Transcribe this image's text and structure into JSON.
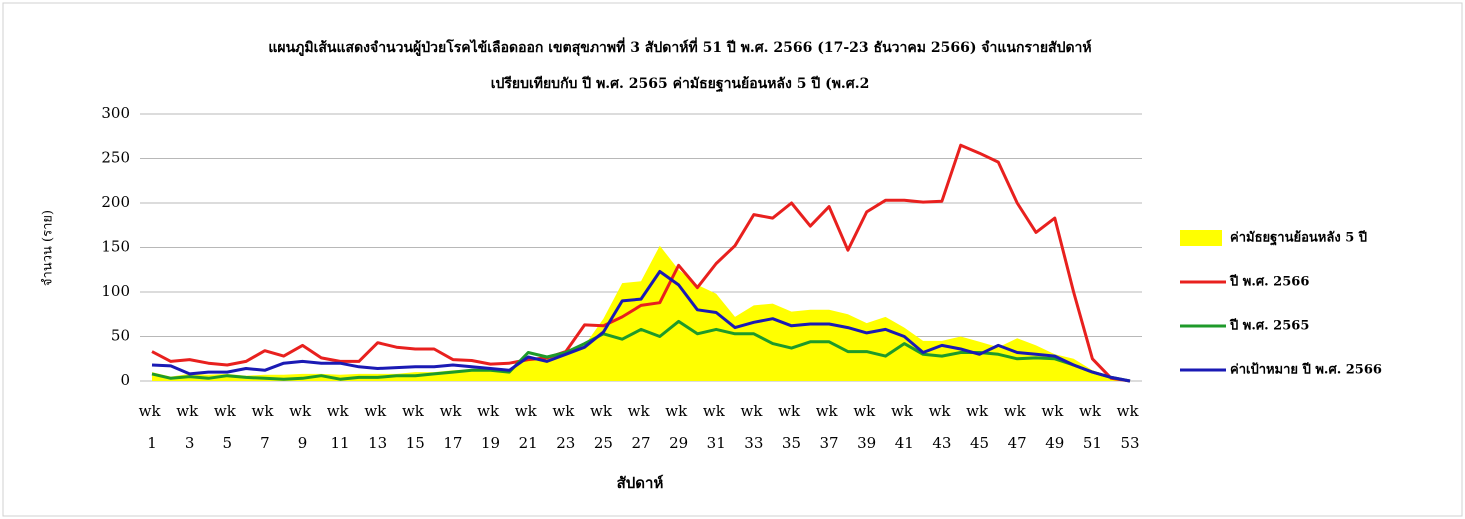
{
  "chart_data": {
    "type": "line",
    "title": "แผนภูมิเส้นแสดงจำนวนผู้ป่วยโรคไข้เลือดออก เขตสุขภาพที่ 3 สัปดาห์ที่ 51 ปี พ.ศ. 2566 (17-23 ธันวาคม 2566) จำแนกรายสัปดาห์",
    "subtitle": "เปรียบเทียบกับ ปี พ.ศ. 2565 ค่ามัธยฐานย้อนหลัง 5 ปี (พ.ศ.2",
    "x_label": "สัปดาห์",
    "y_label": "จำนวน (ราย)",
    "categories": [
      "wk 1",
      null,
      "wk 3",
      null,
      "wk 5",
      null,
      "wk 7",
      null,
      "wk 9",
      null,
      "wk 11",
      null,
      "wk 13",
      null,
      "wk 15",
      null,
      "wk 17",
      null,
      "wk 19",
      null,
      "wk 21",
      null,
      "wk 23",
      null,
      "wk 25",
      null,
      "wk 27",
      null,
      "wk 29",
      null,
      "wk 31",
      null,
      "wk 33",
      null,
      "wk 35",
      null,
      "wk 37",
      null,
      "wk 39",
      null,
      "wk 41",
      null,
      "wk 43",
      null,
      "wk 45",
      null,
      "wk 47",
      null,
      "wk 49",
      null,
      "wk 51",
      null,
      "wk 53"
    ],
    "series": [
      {
        "name": "ค่ามัธยฐานย้อนหลัง 5 ปี",
        "color": "#ffff00",
        "kind": "area",
        "values": [
          10,
          5,
          8,
          7,
          8,
          6,
          7,
          7,
          8,
          8,
          7,
          8,
          8,
          8,
          10,
          10,
          12,
          13,
          12,
          13,
          26,
          25,
          30,
          40,
          70,
          110,
          112,
          152,
          125,
          108,
          98,
          72,
          85,
          87,
          78,
          80,
          80,
          75,
          65,
          72,
          60,
          45,
          45,
          50,
          44,
          38,
          48,
          40,
          30,
          25,
          12,
          5,
          0
        ]
      },
      {
        "name": "ปี พ.ศ. 2566",
        "color": "#e8201e",
        "kind": "line",
        "values": [
          33,
          22,
          24,
          20,
          18,
          22,
          34,
          28,
          40,
          26,
          22,
          22,
          43,
          38,
          36,
          36,
          24,
          23,
          19,
          20,
          24,
          26,
          33,
          63,
          62,
          72,
          85,
          88,
          130,
          105,
          132,
          152,
          187,
          183,
          200,
          174,
          196,
          147,
          190,
          203,
          203,
          201,
          202,
          265,
          256,
          246,
          200,
          167,
          183,
          100,
          25,
          3,
          0
        ]
      },
      {
        "name": "ปี พ.ศ. 2565",
        "color": "#1e9a2a",
        "kind": "line",
        "values": [
          8,
          3,
          5,
          3,
          6,
          4,
          3,
          2,
          3,
          6,
          2,
          4,
          4,
          6,
          6,
          8,
          10,
          12,
          12,
          10,
          32,
          27,
          32,
          42,
          53,
          47,
          58,
          50,
          67,
          53,
          58,
          53,
          53,
          42,
          37,
          44,
          44,
          33,
          33,
          28,
          42,
          30,
          28,
          32,
          32,
          30,
          25,
          26,
          25,
          18,
          10,
          4,
          0
        ]
      },
      {
        "name": "ค่าเป้าหมาย ปี พ.ศ. 2566",
        "color": "#1a1ab4",
        "kind": "line",
        "values": [
          18,
          17,
          8,
          10,
          10,
          14,
          12,
          20,
          22,
          20,
          20,
          16,
          14,
          15,
          16,
          16,
          18,
          16,
          14,
          12,
          27,
          22,
          30,
          38,
          55,
          90,
          92,
          123,
          108,
          80,
          77,
          60,
          66,
          70,
          62,
          64,
          64,
          60,
          54,
          58,
          50,
          32,
          40,
          36,
          30,
          40,
          32,
          30,
          28,
          18,
          10,
          4,
          0
        ]
      }
    ],
    "ylim": [
      0,
      300
    ],
    "yticks": [
      0,
      50,
      100,
      150,
      200,
      250,
      300
    ],
    "grid": true,
    "legend": "right"
  }
}
